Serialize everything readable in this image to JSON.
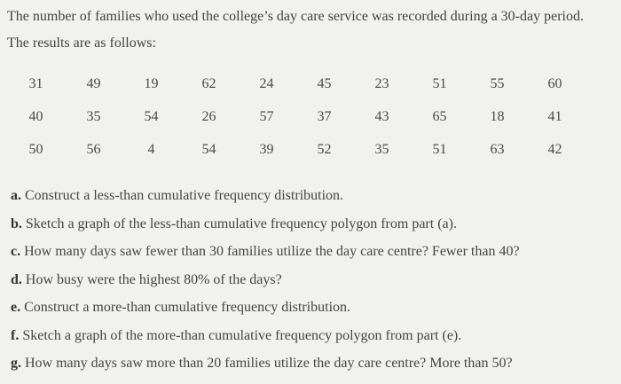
{
  "problem": {
    "intro": "The number of families who used the college’s day care service was recorded during a 30-day period. The results are as follows:"
  },
  "data_table": {
    "rows": [
      [
        "31",
        "49",
        "19",
        "62",
        "24",
        "45",
        "23",
        "51",
        "55",
        "60"
      ],
      [
        "40",
        "35",
        "54",
        "26",
        "57",
        "37",
        "43",
        "65",
        "18",
        "41"
      ],
      [
        "50",
        "56",
        "4",
        "54",
        "39",
        "52",
        "35",
        "51",
        "63",
        "42"
      ]
    ]
  },
  "questions": [
    {
      "label": "a.",
      "text": "Construct a less-than cumulative frequency distribution."
    },
    {
      "label": "b.",
      "text": "Sketch a graph of the less-than cumulative frequency polygon from part (a)."
    },
    {
      "label": "c.",
      "text": "How many days saw fewer than 30 families utilize the day care centre? Fewer than 40?"
    },
    {
      "label": "d.",
      "text": "How busy were the highest 80% of the days?"
    },
    {
      "label": "e.",
      "text": "Construct a more-than cumulative frequency distribution."
    },
    {
      "label": "f.",
      "text": "Sketch a graph of the more-than cumulative frequency polygon from part (e)."
    },
    {
      "label": "g.",
      "text": "How many days saw more than 20 families utilize the day care centre? More than 50?"
    }
  ]
}
